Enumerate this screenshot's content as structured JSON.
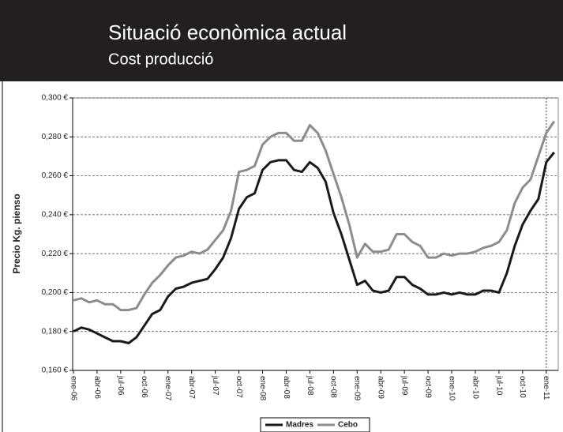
{
  "header": {
    "title": "Situació econòmica actual",
    "subtitle": "Cost producció"
  },
  "chart_data": {
    "type": "line",
    "y_label": "Precio Kg. pienso",
    "categories": [
      "ene-06",
      null,
      null,
      "abr-06",
      null,
      null,
      "jul-06",
      null,
      null,
      "oct-06",
      null,
      null,
      "ene-07",
      null,
      null,
      "abr-07",
      null,
      null,
      "jul-07",
      null,
      null,
      "oct-07",
      null,
      null,
      "ene-08",
      null,
      null,
      "abr-08",
      null,
      null,
      "jul-08",
      null,
      null,
      "oct-08",
      null,
      null,
      "ene-09",
      null,
      null,
      "abr-09",
      null,
      null,
      "jul-09",
      null,
      null,
      "oct-09",
      null,
      null,
      "ene-10",
      null,
      null,
      "abr-10",
      null,
      null,
      "jul-10",
      null,
      null,
      "oct-10",
      null,
      null,
      "ene-11",
      null
    ],
    "series": [
      {
        "name": "Madres",
        "color": "#1a1a1a",
        "values": [
          0.18,
          0.182,
          0.181,
          0.179,
          0.177,
          0.175,
          0.175,
          0.174,
          0.177,
          0.183,
          0.189,
          0.191,
          0.198,
          0.202,
          0.203,
          0.205,
          0.206,
          0.207,
          0.212,
          0.218,
          0.228,
          0.243,
          0.249,
          0.251,
          0.263,
          0.267,
          0.268,
          0.268,
          0.263,
          0.262,
          0.267,
          0.264,
          0.257,
          0.241,
          0.23,
          0.217,
          0.204,
          0.206,
          0.201,
          0.2,
          0.201,
          0.208,
          0.208,
          0.204,
          0.202,
          0.199,
          0.199,
          0.2,
          0.199,
          0.2,
          0.199,
          0.199,
          0.201,
          0.201,
          0.2,
          0.21,
          0.224,
          0.235,
          0.242,
          0.248,
          0.267,
          0.272
        ]
      },
      {
        "name": "Cebo",
        "color": "#8c8c8c",
        "values": [
          0.196,
          0.197,
          0.195,
          0.196,
          0.194,
          0.194,
          0.191,
          0.191,
          0.192,
          0.199,
          0.205,
          0.209,
          0.214,
          0.218,
          0.219,
          0.221,
          0.22,
          0.222,
          0.227,
          0.232,
          0.242,
          0.262,
          0.263,
          0.265,
          0.276,
          0.28,
          0.282,
          0.282,
          0.278,
          0.278,
          0.286,
          0.282,
          0.273,
          0.261,
          0.249,
          0.235,
          0.218,
          0.225,
          0.221,
          0.221,
          0.222,
          0.23,
          0.23,
          0.226,
          0.224,
          0.218,
          0.218,
          0.22,
          0.219,
          0.22,
          0.22,
          0.221,
          0.223,
          0.224,
          0.226,
          0.232,
          0.246,
          0.254,
          0.258,
          0.27,
          0.282,
          0.288
        ]
      }
    ],
    "ylim": [
      0.16,
      0.3
    ],
    "yticks": [
      {
        "value": 0.16,
        "label": "0,160 €"
      },
      {
        "value": 0.18,
        "label": "0,180 €"
      },
      {
        "value": 0.2,
        "label": "0,200 €"
      },
      {
        "value": 0.22,
        "label": "0,220 €"
      },
      {
        "value": 0.24,
        "label": "0,240 €"
      },
      {
        "value": 0.26,
        "label": "0,260 €"
      },
      {
        "value": 0.28,
        "label": "0,280 €"
      },
      {
        "value": 0.3,
        "label": "0,300 €"
      }
    ],
    "grid": true,
    "legend": "bottom"
  }
}
